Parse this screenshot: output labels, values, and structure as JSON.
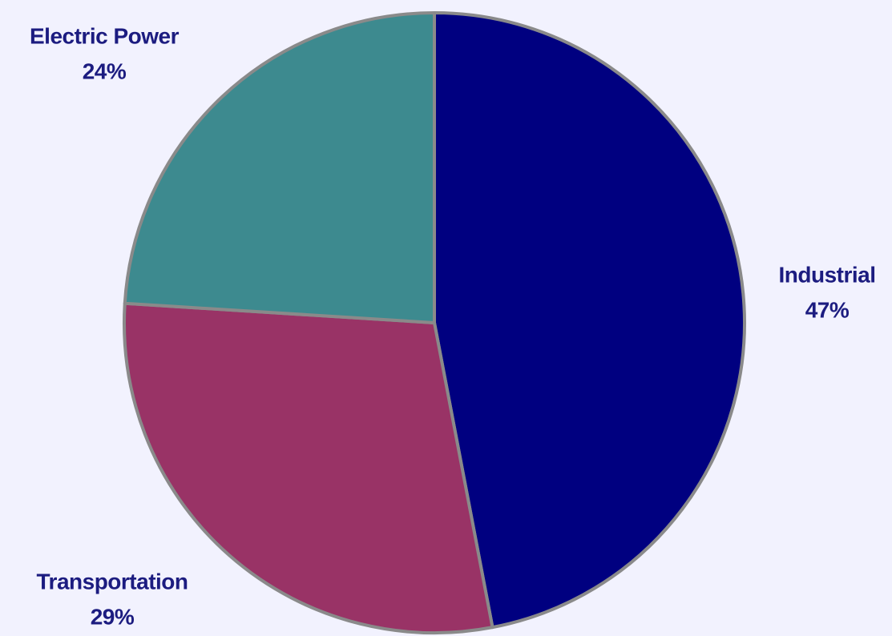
{
  "chart_data": {
    "type": "pie",
    "categories": [
      "Industrial",
      "Transportation",
      "Electric Power"
    ],
    "values": [
      47,
      29,
      24
    ],
    "value_labels": [
      "47%",
      "29%",
      "24%"
    ],
    "colors": [
      "#000080",
      "#993366",
      "#3d8a8f"
    ]
  }
}
